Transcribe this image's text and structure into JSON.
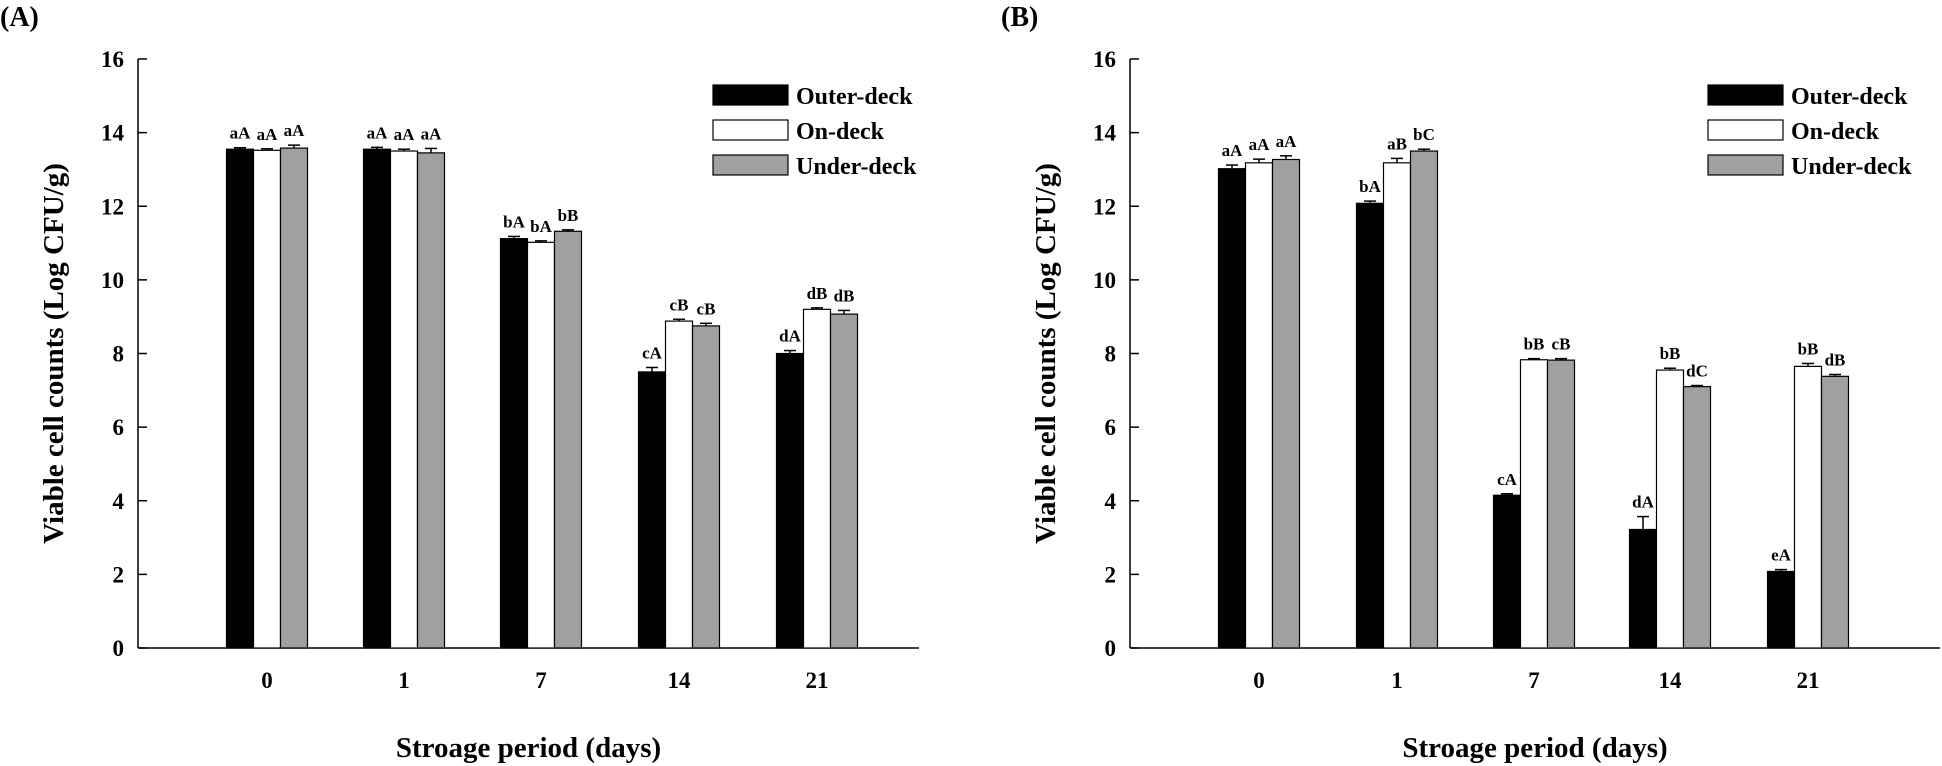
{
  "chart_data": [
    {
      "panel_label": "(A)",
      "type": "bar",
      "xlabel": "Stroage period (days)",
      "ylabel": "Viable cell counts (Log CFU/g)",
      "ylim": [
        0,
        16
      ],
      "yticks": [
        0,
        2,
        4,
        6,
        8,
        10,
        12,
        14,
        16
      ],
      "legend_position": "top-right",
      "categories": [
        "0",
        "1",
        "7",
        "14",
        "21"
      ],
      "series": [
        {
          "name": "Outer-deck",
          "color": "#000000",
          "values": [
            13.55,
            13.55,
            11.12,
            7.5,
            8.0
          ],
          "errors": [
            0.04,
            0.05,
            0.06,
            0.12,
            0.08
          ],
          "labels": [
            "aA",
            "aA",
            "bA",
            "cA",
            "dA"
          ]
        },
        {
          "name": "On-deck",
          "color": "#ffffff",
          "values": [
            13.52,
            13.5,
            11.02,
            8.88,
            9.2
          ],
          "errors": [
            0.04,
            0.05,
            0.04,
            0.05,
            0.04
          ],
          "labels": [
            "aA",
            "aA",
            "bA",
            "cB",
            "dB"
          ]
        },
        {
          "name": "Under-deck",
          "color": "#a0a0a0",
          "values": [
            13.58,
            13.45,
            11.32,
            8.75,
            9.07
          ],
          "errors": [
            0.08,
            0.12,
            0.04,
            0.07,
            0.1
          ],
          "labels": [
            "aA",
            "aA",
            "bB",
            "cB",
            "dB"
          ]
        }
      ]
    },
    {
      "panel_label": "(B)",
      "type": "bar",
      "xlabel": "Stroage period (days)",
      "ylabel": "Viable cell counts (Log CFU/g)",
      "ylim": [
        0,
        16
      ],
      "yticks": [
        0,
        2,
        4,
        6,
        8,
        10,
        12,
        14,
        16
      ],
      "legend_position": "top-right",
      "categories": [
        "0",
        "1",
        "7",
        "14",
        "21"
      ],
      "series": [
        {
          "name": "Outer-deck",
          "color": "#000000",
          "values": [
            13.02,
            12.08,
            4.15,
            3.22,
            2.08
          ],
          "errors": [
            0.1,
            0.06,
            0.04,
            0.35,
            0.05
          ],
          "labels": [
            "aA",
            "bA",
            "cA",
            "dA",
            "eA"
          ]
        },
        {
          "name": "On-deck",
          "color": "#ffffff",
          "values": [
            13.18,
            13.18,
            7.83,
            7.55,
            7.65
          ],
          "errors": [
            0.1,
            0.12,
            0.03,
            0.05,
            0.08
          ],
          "labels": [
            "aA",
            "aB",
            "bB",
            "bB",
            "bB"
          ]
        },
        {
          "name": "Under-deck",
          "color": "#a0a0a0",
          "values": [
            13.27,
            13.5,
            7.82,
            7.1,
            7.38
          ],
          "errors": [
            0.1,
            0.05,
            0.04,
            0.03,
            0.05
          ],
          "labels": [
            "aA",
            "bC",
            "cB",
            "dC",
            "dB"
          ]
        }
      ]
    }
  ]
}
